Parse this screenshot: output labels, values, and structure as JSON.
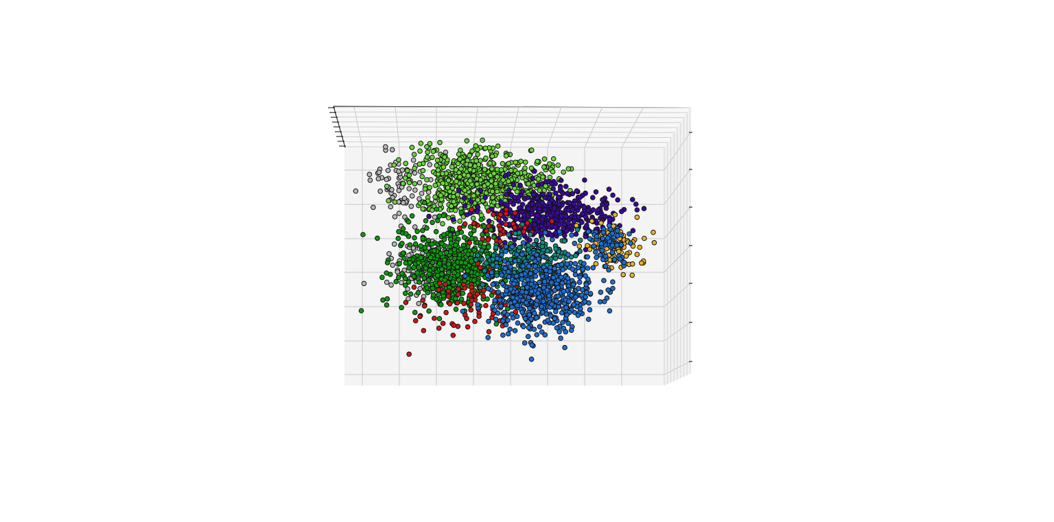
{
  "chart_data": {
    "type": "scatter",
    "title": "",
    "xlabel": "",
    "ylabel": "",
    "zlabel": "",
    "grid": true,
    "axis_tick_labels_visible": false,
    "series": [
      {
        "color": "#b9b9b9",
        "cx": 0.27,
        "cy": 0.52,
        "sx": 0.06,
        "sy": 0.06,
        "n": 180,
        "extra": [
          [
            0.18,
            0.2,
            0.05,
            0.07,
            80
          ]
        ]
      },
      {
        "color": "#6bd63b",
        "cx": 0.38,
        "cy": 0.18,
        "sx": 0.085,
        "sy": 0.075,
        "n": 520,
        "extra": [
          [
            0.55,
            0.17,
            0.07,
            0.045,
            180
          ]
        ]
      },
      {
        "color": "#3a0a9e",
        "cx": 0.64,
        "cy": 0.31,
        "sx": 0.1,
        "sy": 0.055,
        "n": 480
      },
      {
        "color": "#e7b52a",
        "cx": 0.84,
        "cy": 0.44,
        "sx": 0.045,
        "sy": 0.055,
        "n": 90
      },
      {
        "color": "#0e9a0e",
        "cx": 0.34,
        "cy": 0.52,
        "sx": 0.085,
        "sy": 0.085,
        "n": 520
      },
      {
        "color": "#d01717",
        "cx": 0.4,
        "cy": 0.66,
        "sx": 0.1,
        "sy": 0.06,
        "n": 90,
        "extra": [
          [
            0.48,
            0.36,
            0.06,
            0.05,
            40
          ]
        ]
      },
      {
        "color": "#138a82",
        "cx": 0.57,
        "cy": 0.5,
        "sx": 0.07,
        "sy": 0.05,
        "n": 240
      },
      {
        "color": "#1f6fd0",
        "cx": 0.62,
        "cy": 0.63,
        "sx": 0.085,
        "sy": 0.08,
        "n": 520,
        "extra": [
          [
            0.82,
            0.44,
            0.04,
            0.04,
            70
          ]
        ]
      }
    ]
  }
}
